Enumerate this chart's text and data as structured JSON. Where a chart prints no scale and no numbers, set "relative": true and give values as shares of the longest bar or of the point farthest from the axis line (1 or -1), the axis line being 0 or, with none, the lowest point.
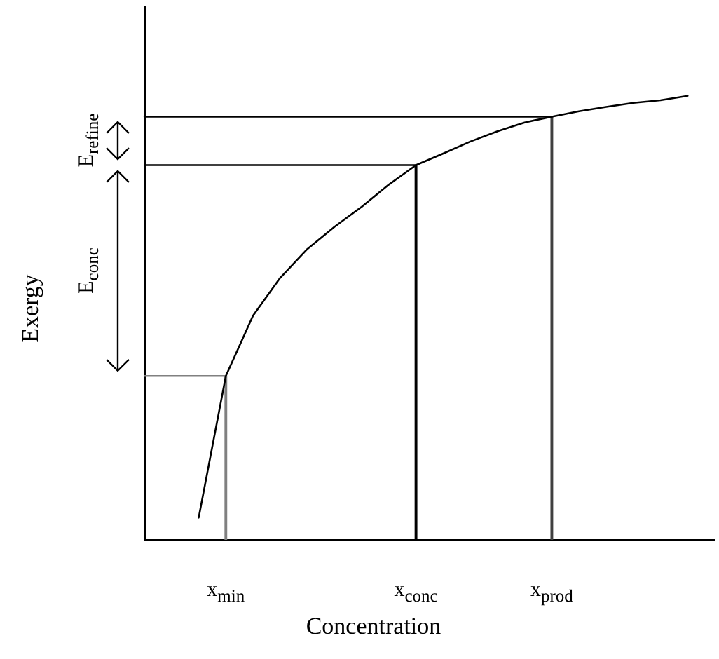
{
  "chart_data": {
    "type": "line",
    "xlabel": "Concentration",
    "ylabel": "Exergy",
    "relative": true,
    "categories": [
      null,
      null,
      null,
      "x$_{min}$",
      null,
      null,
      null,
      null,
      null,
      null,
      "x$_{conc}$",
      null,
      null,
      null,
      null,
      "x$_{prod}$",
      null,
      null,
      null,
      null,
      null,
      null
    ],
    "tick_labels": "x",
    "grid": false,
    "legend": false,
    "marker": "none",
    "line_style": "solid",
    "annotations": [
      "E$_{refine}$",
      "E$_{conc}$"
    ],
    "series": [
      {
        "color": "#000000",
        "values": [
          null,
          null,
          0.05,
          0.369,
          0.505,
          0.59,
          0.655,
          0.705,
          0.75,
          0.8,
          0.844,
          0.87,
          0.897,
          0.92,
          0.94,
          0.953,
          0.965,
          0.975,
          0.984,
          0.99,
          1,
          null
        ]
      },
      {
        "color": "#808080",
        "values": [
          0.369,
          0.369,
          0.369,
          0.369,
          null,
          null,
          null,
          null,
          null,
          null,
          null,
          null,
          null,
          null,
          null,
          null,
          null,
          null,
          null,
          null,
          null,
          null
        ]
      },
      {
        "type": "bar",
        "color": "#808080",
        "values": [
          null,
          null,
          null,
          0.369,
          null,
          null,
          null,
          null,
          null,
          null,
          null,
          null,
          null,
          null,
          null,
          null,
          null,
          null,
          null,
          null,
          null,
          null
        ]
      },
      {
        "color": "#000000",
        "values": [
          0.844,
          0.844,
          0.844,
          0.844,
          0.844,
          0.844,
          0.844,
          0.844,
          0.844,
          0.844,
          0.844,
          null,
          null,
          null,
          null,
          null,
          null,
          null,
          null,
          null,
          null,
          null
        ]
      },
      {
        "type": "bar",
        "color": "#000000",
        "values": [
          null,
          null,
          null,
          null,
          null,
          null,
          null,
          null,
          null,
          null,
          0.844,
          null,
          null,
          null,
          null,
          null,
          null,
          null,
          null,
          null,
          null,
          null
        ]
      },
      {
        "color": "#000000",
        "values": [
          0.953,
          0.953,
          0.953,
          0.953,
          0.953,
          0.953,
          0.953,
          0.953,
          0.953,
          0.953,
          0.953,
          0.953,
          0.953,
          0.953,
          0.953,
          0.953,
          null,
          null,
          null,
          null,
          null,
          null
        ]
      },
      {
        "type": "bar",
        "color": "#404040",
        "values": [
          null,
          null,
          null,
          null,
          null,
          null,
          null,
          null,
          null,
          null,
          null,
          null,
          null,
          null,
          null,
          0.953,
          null,
          null,
          null,
          null,
          null,
          null
        ]
      }
    ]
  }
}
